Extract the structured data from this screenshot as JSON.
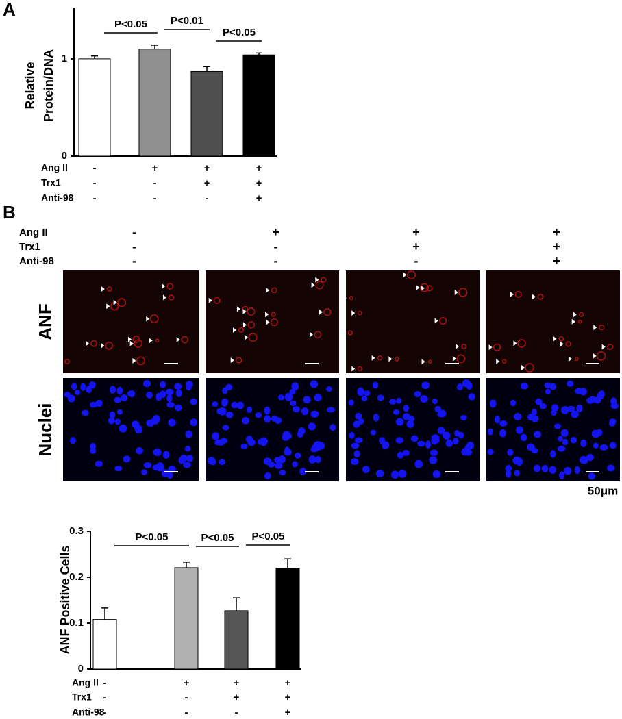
{
  "panel_labels": [
    "A",
    "B"
  ],
  "chart_data": [
    {
      "type": "bar",
      "ylabel": [
        "Relative",
        "Protein/DNA"
      ],
      "values": [
        1.0,
        1.1,
        0.87,
        1.04
      ],
      "errors": [
        0.03,
        0.04,
        0.05,
        0.02
      ],
      "colors": [
        "#ffffff",
        "#909090",
        "#505050",
        "#000000"
      ],
      "ylim": [
        0,
        1.52
      ],
      "yticks": [
        0,
        1
      ],
      "conditions": [
        {
          "name": "Ang II",
          "signs": [
            "-",
            "+",
            "+",
            "+"
          ]
        },
        {
          "name": "Trx1",
          "signs": [
            "-",
            "-",
            "+",
            "+"
          ]
        },
        {
          "name": "Anti-98",
          "signs": [
            "-",
            "-",
            "-",
            "+"
          ]
        }
      ],
      "annotations": [
        {
          "label": "P<0.05",
          "between": [
            0,
            1
          ]
        },
        {
          "label": "P<0.01",
          "between": [
            1,
            2
          ]
        },
        {
          "label": "P<0.05",
          "between": [
            2,
            3
          ]
        }
      ]
    },
    {
      "type": "bar",
      "ylabel": [
        "ANF Positive Cells"
      ],
      "values": [
        0.108,
        0.221,
        0.127,
        0.22
      ],
      "errors": [
        0.025,
        0.012,
        0.028,
        0.02
      ],
      "colors": [
        "#ffffff",
        "#b0b0b0",
        "#555555",
        "#000000"
      ],
      "ylim": [
        0,
        0.3
      ],
      "yticks": [
        0,
        0.1,
        0.2,
        0.3
      ],
      "conditions": [
        {
          "name": "Ang II",
          "signs": [
            "-",
            "+",
            "+",
            "+"
          ]
        },
        {
          "name": "Trx1",
          "signs": [
            "-",
            "-",
            "+",
            "+"
          ]
        },
        {
          "name": "Anti-98",
          "signs": [
            "-",
            "-",
            "-",
            "+"
          ]
        }
      ],
      "annotations": [
        {
          "label": "P<0.05",
          "between": [
            0,
            1
          ]
        },
        {
          "label": "P<0.05",
          "between": [
            1,
            2
          ]
        },
        {
          "label": "P<0.05",
          "between": [
            2,
            3
          ]
        }
      ]
    }
  ],
  "panel_b": {
    "conditions": [
      {
        "name": "Ang II",
        "signs": [
          "-",
          "+",
          "+",
          "+"
        ]
      },
      {
        "name": "Trx1",
        "signs": [
          "-",
          "-",
          "+",
          "+"
        ]
      },
      {
        "name": "Anti-98",
        "signs": [
          "-",
          "-",
          "-",
          "+"
        ]
      }
    ],
    "rows": [
      "ANF",
      "Nuclei"
    ],
    "scale_bar": "50μm"
  }
}
